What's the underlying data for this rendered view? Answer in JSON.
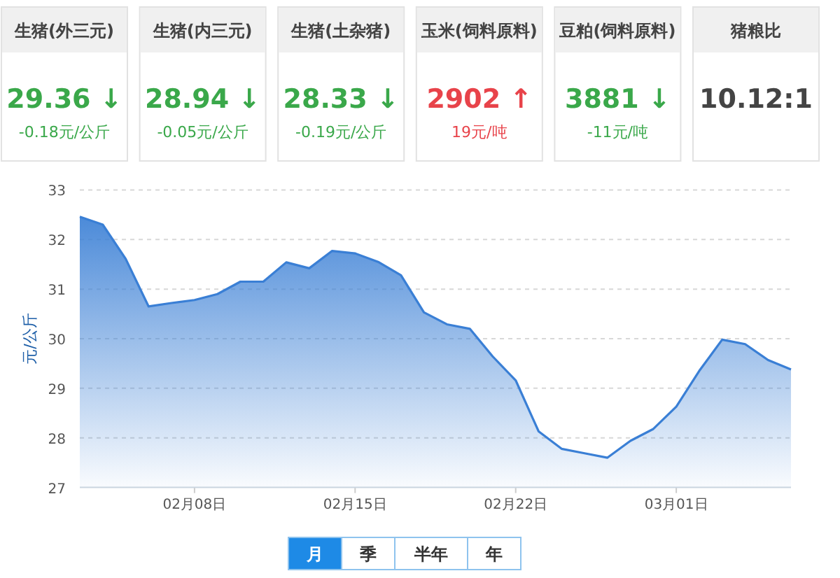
{
  "chart_data": [
    {
      "type": "other",
      "categories": [
        "生猪(外三元)",
        "生猪(内三元)",
        "生猪(土杂猪)",
        "玉米(饲料原料)",
        "豆粕(饲料原料)",
        "猪粮比"
      ],
      "annotations": [
        "29.36 ↓",
        "28.94 ↓",
        "28.33 ↓",
        "2902 ↑",
        "3881 ↓",
        "10.12:1",
        "-0.18元/公斤",
        "-0.05元/公斤",
        "-0.19元/公斤",
        "19元/吨",
        "-11元/吨"
      ]
    },
    {
      "type": "area",
      "ylabel": "元/公斤",
      "color": "#3a7fd5",
      "marker": "none",
      "grid": "y",
      "x": [
        "--02-03",
        "--02-04",
        "--02-05",
        "--02-06",
        "--02-07",
        "--02-08",
        "--02-09",
        "--02-10",
        "--02-11",
        "--02-12",
        "--02-13",
        "--02-14",
        "--02-15",
        "--02-16",
        "--02-17",
        "--02-18",
        "--02-19",
        "--02-20",
        "--02-21",
        "--02-22",
        "--02-23",
        "--02-24",
        "--02-25",
        "--02-26",
        "--02-27",
        "--02-28",
        "--03-01",
        "--03-02",
        "--03-03",
        "--03-04",
        "--03-05",
        "--03-06"
      ],
      "values": [
        32.46,
        32.3,
        31.61,
        30.65,
        30.72,
        30.78,
        30.9,
        31.15,
        31.15,
        31.54,
        31.42,
        31.77,
        31.72,
        31.55,
        31.28,
        30.53,
        30.29,
        30.2,
        29.64,
        29.16,
        28.13,
        27.78,
        27.69,
        27.6,
        27.94,
        28.18,
        28.63,
        29.35,
        29.98,
        29.89,
        29.57,
        29.38
      ],
      "xlim": [
        "--02-03",
        "--03-06"
      ],
      "xticks": [
        {
          "value": "--02-08",
          "label": "02月08日"
        },
        {
          "value": "--02-15",
          "label": "02月15日"
        },
        {
          "value": "--02-22",
          "label": "02月22日"
        },
        {
          "value": "--03-01",
          "label": "03月01日"
        }
      ],
      "ylim": [
        27,
        33
      ],
      "yticks": [
        27,
        28,
        29,
        30,
        31,
        32,
        33
      ],
      "annotations": [
        "月",
        "季",
        "半年",
        "年"
      ]
    }
  ]
}
